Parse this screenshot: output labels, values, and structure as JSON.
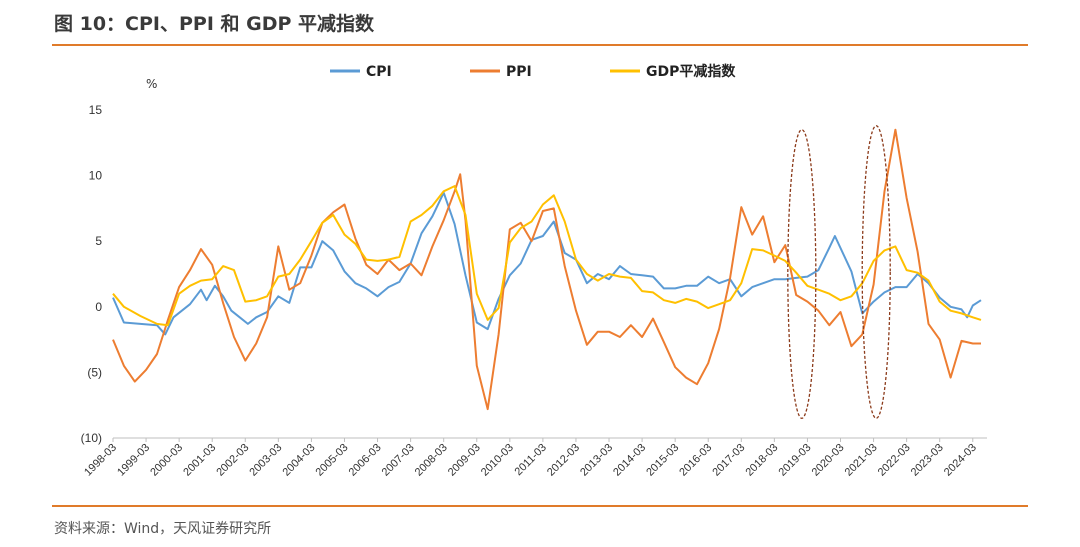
{
  "page_title": "图 10：CPI、PPI 和 GDP 平减指数",
  "source": "资料来源：Wind，天风证券研究所",
  "colors": {
    "rule": "#e07b2a",
    "ellipse": "#8b3a1a"
  },
  "chart_data": {
    "type": "line",
    "unit_label": "%",
    "ylim": [
      -10,
      15
    ],
    "yticks": [
      15,
      10,
      5,
      0,
      -5,
      -10
    ],
    "ytick_labels": [
      "15",
      "10",
      "5",
      "0",
      "(5)",
      "(10)"
    ],
    "xlim": [
      1998.17,
      2024.6
    ],
    "xtick_labels": [
      "1998-03",
      "1999-03",
      "2000-03",
      "2001-03",
      "2002-03",
      "2003-03",
      "2004-03",
      "2005-03",
      "2006-03",
      "2007-03",
      "2008-03",
      "2009-03",
      "2010-03",
      "2011-03",
      "2012-03",
      "2013-03",
      "2014-03",
      "2015-03",
      "2016-03",
      "2017-03",
      "2018-03",
      "2019-03",
      "2020-03",
      "2021-03",
      "2022-03",
      "2023-03",
      "2024-03"
    ],
    "legend_position": "top",
    "grid": false,
    "annotations": [
      {
        "type": "dashed-ellipse",
        "x_center": 2019.0,
        "y_top": 13.5,
        "y_bottom": -8.5
      },
      {
        "type": "dashed-ellipse",
        "x_center": 2021.25,
        "y_top": 13.8,
        "y_bottom": -8.5
      }
    ],
    "series": [
      {
        "name": "CPI",
        "color": "#5b9bd5",
        "points": [
          [
            1998.17,
            0.7
          ],
          [
            1998.5,
            -1.2
          ],
          [
            1999.0,
            -1.3
          ],
          [
            1999.5,
            -1.4
          ],
          [
            1999.75,
            -2.1
          ],
          [
            2000.0,
            -0.8
          ],
          [
            2000.5,
            0.2
          ],
          [
            2000.83,
            1.3
          ],
          [
            2001.0,
            0.5
          ],
          [
            2001.25,
            1.6
          ],
          [
            2001.5,
            0.8
          ],
          [
            2001.75,
            -0.3
          ],
          [
            2002.0,
            -0.8
          ],
          [
            2002.25,
            -1.3
          ],
          [
            2002.5,
            -0.8
          ],
          [
            2002.83,
            -0.4
          ],
          [
            2003.17,
            0.8
          ],
          [
            2003.5,
            0.3
          ],
          [
            2003.83,
            3.0
          ],
          [
            2004.17,
            3.0
          ],
          [
            2004.5,
            5.0
          ],
          [
            2004.83,
            4.3
          ],
          [
            2005.17,
            2.7
          ],
          [
            2005.5,
            1.8
          ],
          [
            2005.83,
            1.4
          ],
          [
            2006.17,
            0.8
          ],
          [
            2006.5,
            1.5
          ],
          [
            2006.83,
            1.9
          ],
          [
            2007.17,
            3.3
          ],
          [
            2007.5,
            5.6
          ],
          [
            2007.83,
            6.9
          ],
          [
            2008.17,
            8.7
          ],
          [
            2008.5,
            6.3
          ],
          [
            2008.83,
            2.4
          ],
          [
            2009.17,
            -1.2
          ],
          [
            2009.5,
            -1.7
          ],
          [
            2009.83,
            0.6
          ],
          [
            2010.17,
            2.4
          ],
          [
            2010.5,
            3.3
          ],
          [
            2010.83,
            5.1
          ],
          [
            2011.17,
            5.4
          ],
          [
            2011.5,
            6.5
          ],
          [
            2011.83,
            4.1
          ],
          [
            2012.17,
            3.6
          ],
          [
            2012.5,
            1.8
          ],
          [
            2012.83,
            2.5
          ],
          [
            2013.17,
            2.1
          ],
          [
            2013.5,
            3.1
          ],
          [
            2013.83,
            2.5
          ],
          [
            2014.17,
            2.4
          ],
          [
            2014.5,
            2.3
          ],
          [
            2014.83,
            1.4
          ],
          [
            2015.17,
            1.4
          ],
          [
            2015.5,
            1.6
          ],
          [
            2015.83,
            1.6
          ],
          [
            2016.17,
            2.3
          ],
          [
            2016.5,
            1.8
          ],
          [
            2016.83,
            2.1
          ],
          [
            2017.17,
            0.8
          ],
          [
            2017.5,
            1.5
          ],
          [
            2017.83,
            1.8
          ],
          [
            2018.17,
            2.1
          ],
          [
            2018.5,
            2.1
          ],
          [
            2018.83,
            2.2
          ],
          [
            2019.17,
            2.3
          ],
          [
            2019.5,
            2.8
          ],
          [
            2019.83,
            4.5
          ],
          [
            2020.0,
            5.4
          ],
          [
            2020.5,
            2.7
          ],
          [
            2020.83,
            -0.5
          ],
          [
            2021.17,
            0.4
          ],
          [
            2021.5,
            1.1
          ],
          [
            2021.83,
            1.5
          ],
          [
            2022.17,
            1.5
          ],
          [
            2022.5,
            2.5
          ],
          [
            2022.83,
            1.8
          ],
          [
            2023.17,
            0.7
          ],
          [
            2023.5,
            0.0
          ],
          [
            2023.83,
            -0.2
          ],
          [
            2024.0,
            -0.8
          ],
          [
            2024.17,
            0.1
          ],
          [
            2024.42,
            0.5
          ]
        ]
      },
      {
        "name": "PPI",
        "color": "#ed7d31",
        "points": [
          [
            1998.17,
            -2.5
          ],
          [
            1998.5,
            -4.5
          ],
          [
            1998.83,
            -5.7
          ],
          [
            1999.17,
            -4.8
          ],
          [
            1999.5,
            -3.6
          ],
          [
            1999.83,
            -1.0
          ],
          [
            2000.17,
            1.5
          ],
          [
            2000.5,
            2.8
          ],
          [
            2000.83,
            4.4
          ],
          [
            2001.17,
            3.2
          ],
          [
            2001.5,
            0.3
          ],
          [
            2001.83,
            -2.3
          ],
          [
            2002.17,
            -4.1
          ],
          [
            2002.5,
            -2.8
          ],
          [
            2002.83,
            -0.8
          ],
          [
            2003.17,
            4.6
          ],
          [
            2003.5,
            1.3
          ],
          [
            2003.83,
            1.8
          ],
          [
            2004.17,
            3.9
          ],
          [
            2004.5,
            6.4
          ],
          [
            2004.83,
            7.2
          ],
          [
            2005.17,
            7.8
          ],
          [
            2005.5,
            5.2
          ],
          [
            2005.83,
            3.2
          ],
          [
            2006.17,
            2.5
          ],
          [
            2006.5,
            3.6
          ],
          [
            2006.83,
            2.8
          ],
          [
            2007.17,
            3.3
          ],
          [
            2007.5,
            2.4
          ],
          [
            2007.83,
            4.6
          ],
          [
            2008.17,
            6.6
          ],
          [
            2008.5,
            8.8
          ],
          [
            2008.67,
            10.1
          ],
          [
            2008.83,
            6.6
          ],
          [
            2009.17,
            -4.5
          ],
          [
            2009.5,
            -7.8
          ],
          [
            2009.83,
            -2.1
          ],
          [
            2010.17,
            5.9
          ],
          [
            2010.5,
            6.4
          ],
          [
            2010.83,
            5.0
          ],
          [
            2011.17,
            7.3
          ],
          [
            2011.5,
            7.5
          ],
          [
            2011.83,
            3.1
          ],
          [
            2012.17,
            -0.3
          ],
          [
            2012.5,
            -2.9
          ],
          [
            2012.83,
            -1.9
          ],
          [
            2013.17,
            -1.9
          ],
          [
            2013.5,
            -2.3
          ],
          [
            2013.83,
            -1.4
          ],
          [
            2014.17,
            -2.3
          ],
          [
            2014.5,
            -0.9
          ],
          [
            2014.83,
            -2.7
          ],
          [
            2015.17,
            -4.6
          ],
          [
            2015.5,
            -5.4
          ],
          [
            2015.83,
            -5.9
          ],
          [
            2016.17,
            -4.3
          ],
          [
            2016.5,
            -1.7
          ],
          [
            2016.83,
            2.2
          ],
          [
            2017.17,
            7.6
          ],
          [
            2017.5,
            5.5
          ],
          [
            2017.83,
            6.9
          ],
          [
            2018.17,
            3.4
          ],
          [
            2018.5,
            4.7
          ],
          [
            2018.83,
            0.9
          ],
          [
            2019.17,
            0.4
          ],
          [
            2019.5,
            -0.3
          ],
          [
            2019.83,
            -1.4
          ],
          [
            2020.17,
            -0.4
          ],
          [
            2020.5,
            -3.0
          ],
          [
            2020.83,
            -2.1
          ],
          [
            2021.17,
            1.7
          ],
          [
            2021.5,
            8.8
          ],
          [
            2021.83,
            13.5
          ],
          [
            2022.17,
            8.3
          ],
          [
            2022.5,
            4.2
          ],
          [
            2022.83,
            -1.3
          ],
          [
            2023.17,
            -2.5
          ],
          [
            2023.5,
            -5.4
          ],
          [
            2023.83,
            -2.6
          ],
          [
            2024.17,
            -2.8
          ],
          [
            2024.42,
            -2.8
          ]
        ]
      },
      {
        "name": "GDP平减指数",
        "color": "#ffc000",
        "points": [
          [
            1998.17,
            1.0
          ],
          [
            1998.5,
            0.0
          ],
          [
            1999.0,
            -0.7
          ],
          [
            1999.5,
            -1.3
          ],
          [
            1999.83,
            -1.4
          ],
          [
            2000.17,
            1.0
          ],
          [
            2000.5,
            1.6
          ],
          [
            2000.83,
            2.0
          ],
          [
            2001.17,
            2.1
          ],
          [
            2001.5,
            3.1
          ],
          [
            2001.83,
            2.8
          ],
          [
            2002.17,
            0.4
          ],
          [
            2002.5,
            0.5
          ],
          [
            2002.83,
            0.8
          ],
          [
            2003.17,
            2.3
          ],
          [
            2003.5,
            2.5
          ],
          [
            2003.83,
            3.6
          ],
          [
            2004.17,
            5.0
          ],
          [
            2004.5,
            6.4
          ],
          [
            2004.83,
            7.0
          ],
          [
            2005.17,
            5.5
          ],
          [
            2005.5,
            4.8
          ],
          [
            2005.83,
            3.6
          ],
          [
            2006.17,
            3.5
          ],
          [
            2006.5,
            3.6
          ],
          [
            2006.83,
            3.8
          ],
          [
            2007.17,
            6.5
          ],
          [
            2007.5,
            7.0
          ],
          [
            2007.83,
            7.7
          ],
          [
            2008.17,
            8.8
          ],
          [
            2008.5,
            9.2
          ],
          [
            2008.83,
            7.0
          ],
          [
            2009.17,
            1.0
          ],
          [
            2009.5,
            -1.0
          ],
          [
            2009.83,
            -0.1
          ],
          [
            2010.17,
            4.9
          ],
          [
            2010.5,
            6.0
          ],
          [
            2010.83,
            6.5
          ],
          [
            2011.17,
            7.8
          ],
          [
            2011.5,
            8.5
          ],
          [
            2011.83,
            6.5
          ],
          [
            2012.17,
            3.6
          ],
          [
            2012.5,
            2.5
          ],
          [
            2012.83,
            2.0
          ],
          [
            2013.17,
            2.5
          ],
          [
            2013.5,
            2.3
          ],
          [
            2013.83,
            2.2
          ],
          [
            2014.17,
            1.2
          ],
          [
            2014.5,
            1.1
          ],
          [
            2014.83,
            0.5
          ],
          [
            2015.17,
            0.3
          ],
          [
            2015.5,
            0.6
          ],
          [
            2015.83,
            0.4
          ],
          [
            2016.17,
            -0.1
          ],
          [
            2016.5,
            0.2
          ],
          [
            2016.83,
            0.5
          ],
          [
            2017.17,
            1.8
          ],
          [
            2017.5,
            4.4
          ],
          [
            2017.83,
            4.3
          ],
          [
            2018.17,
            3.9
          ],
          [
            2018.5,
            3.5
          ],
          [
            2018.83,
            2.6
          ],
          [
            2019.17,
            1.6
          ],
          [
            2019.5,
            1.3
          ],
          [
            2019.83,
            1.0
          ],
          [
            2020.17,
            0.5
          ],
          [
            2020.5,
            0.8
          ],
          [
            2020.83,
            1.8
          ],
          [
            2021.17,
            3.5
          ],
          [
            2021.5,
            4.3
          ],
          [
            2021.83,
            4.6
          ],
          [
            2022.17,
            2.8
          ],
          [
            2022.5,
            2.6
          ],
          [
            2022.83,
            2.0
          ],
          [
            2023.17,
            0.4
          ],
          [
            2023.5,
            -0.3
          ],
          [
            2023.83,
            -0.5
          ],
          [
            2024.17,
            -0.8
          ],
          [
            2024.42,
            -1.0
          ]
        ]
      }
    ]
  }
}
